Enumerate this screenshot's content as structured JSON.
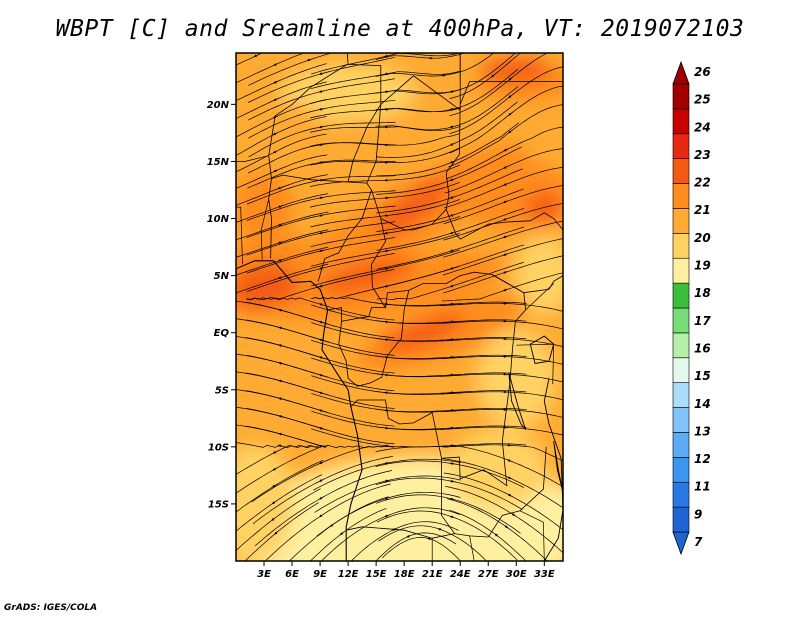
{
  "title": "WBPT [C] and Sreamline at 400hPa, VT: 2019072103",
  "credit": "GrADS: IGES/COLA",
  "map": {
    "lon_range": [
      0,
      35
    ],
    "lat_range": [
      -20,
      24.5
    ],
    "lat_ticks": [
      {
        "value": 20,
        "label": "20N"
      },
      {
        "value": 15,
        "label": "15N"
      },
      {
        "value": 10,
        "label": "10N"
      },
      {
        "value": 5,
        "label": "5N"
      },
      {
        "value": 0,
        "label": "EQ"
      },
      {
        "value": -5,
        "label": "5S"
      },
      {
        "value": -10,
        "label": "10S"
      },
      {
        "value": -15,
        "label": "15S"
      }
    ],
    "lon_ticks": [
      {
        "value": 3,
        "label": "3E"
      },
      {
        "value": 6,
        "label": "6E"
      },
      {
        "value": 9,
        "label": "9E"
      },
      {
        "value": 12,
        "label": "12E"
      },
      {
        "value": 15,
        "label": "15E"
      },
      {
        "value": 18,
        "label": "18E"
      },
      {
        "value": 21,
        "label": "21E"
      },
      {
        "value": 24,
        "label": "24E"
      },
      {
        "value": 27,
        "label": "27E"
      },
      {
        "value": 30,
        "label": "30E"
      },
      {
        "value": 33,
        "label": "33E"
      }
    ]
  },
  "colorbar": {
    "labels": [
      "7",
      "9",
      "11",
      "12",
      "13",
      "14",
      "15",
      "16",
      "17",
      "18",
      "19",
      "20",
      "21",
      "22",
      "23",
      "24",
      "25",
      "26"
    ],
    "colors": [
      "#1e64d2",
      "#2878e6",
      "#3c96f0",
      "#5aacf5",
      "#82c4fa",
      "#aadcfc",
      "#e6f8ec",
      "#b4f0aa",
      "#78dc78",
      "#3cbe3c",
      "#fff0a0",
      "#ffd264",
      "#ffaa32",
      "#ff8c1e",
      "#f55a14",
      "#e62814",
      "#c80000",
      "#a00000"
    ]
  },
  "field": {
    "colors": {
      "c19": "#fff0a0",
      "c20": "#ffd264",
      "c21": "#ffaa32",
      "c22": "#ff8c1e",
      "c23": "#f55a14"
    }
  }
}
